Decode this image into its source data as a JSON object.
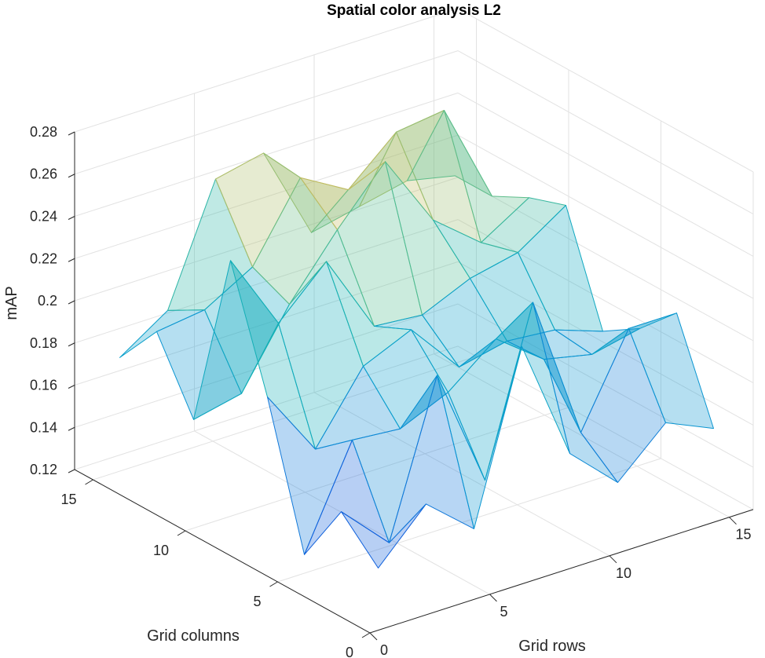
{
  "chart_data": {
    "type": "surface3d",
    "title": "Spatial color analysis L2",
    "xlabel": "Grid rows",
    "ylabel": "Grid columns",
    "zlabel": "mAP",
    "xlim": [
      0,
      16
    ],
    "ylim": [
      0,
      16
    ],
    "zlim": [
      0.12,
      0.28
    ],
    "x_ticks": [
      "0",
      "5",
      "10",
      "15"
    ],
    "y_ticks": [
      "0",
      "5",
      "10",
      "15"
    ],
    "z_ticks": [
      "0.12",
      "0.14",
      "0.16",
      "0.18",
      "0.2",
      "0.22",
      "0.24",
      "0.26",
      "0.28"
    ],
    "grid": true,
    "colormap": "parula",
    "face_alpha": 0.3,
    "x": [
      1.5,
      3.5,
      5.5,
      7.5,
      9.5,
      11.5,
      13.5,
      15.5
    ],
    "y": [
      1.5,
      3.5,
      5.5,
      7.5,
      9.5,
      11.5,
      13.5,
      15.5
    ],
    "z_rows": [
      [
        0.138,
        0.161,
        0.142,
        0.221,
        0.163,
        0.142,
        0.163,
        0.153
      ],
      [
        0.155,
        0.133,
        0.205,
        0.148,
        0.225,
        0.156,
        0.198,
        0.198
      ],
      [
        0.125,
        0.172,
        0.17,
        0.18,
        0.198,
        0.181,
        0.176,
        0.181
      ],
      [
        0.19,
        0.158,
        0.19,
        0.2,
        0.175,
        0.18,
        0.178,
        0.17
      ],
      [
        0.245,
        0.208,
        0.23,
        0.192,
        0.19,
        0.2,
        0.205,
        0.22
      ],
      [
        0.16,
        0.165,
        0.2,
        0.228,
        0.253,
        0.218,
        0.2,
        0.214
      ],
      [
        0.192,
        0.195,
        0.208,
        0.243,
        0.23,
        0.25,
        0.253,
        0.205
      ],
      [
        0.17,
        0.185,
        0.24,
        0.245,
        0.2,
        0.205,
        0.21,
        0.205
      ]
    ]
  }
}
